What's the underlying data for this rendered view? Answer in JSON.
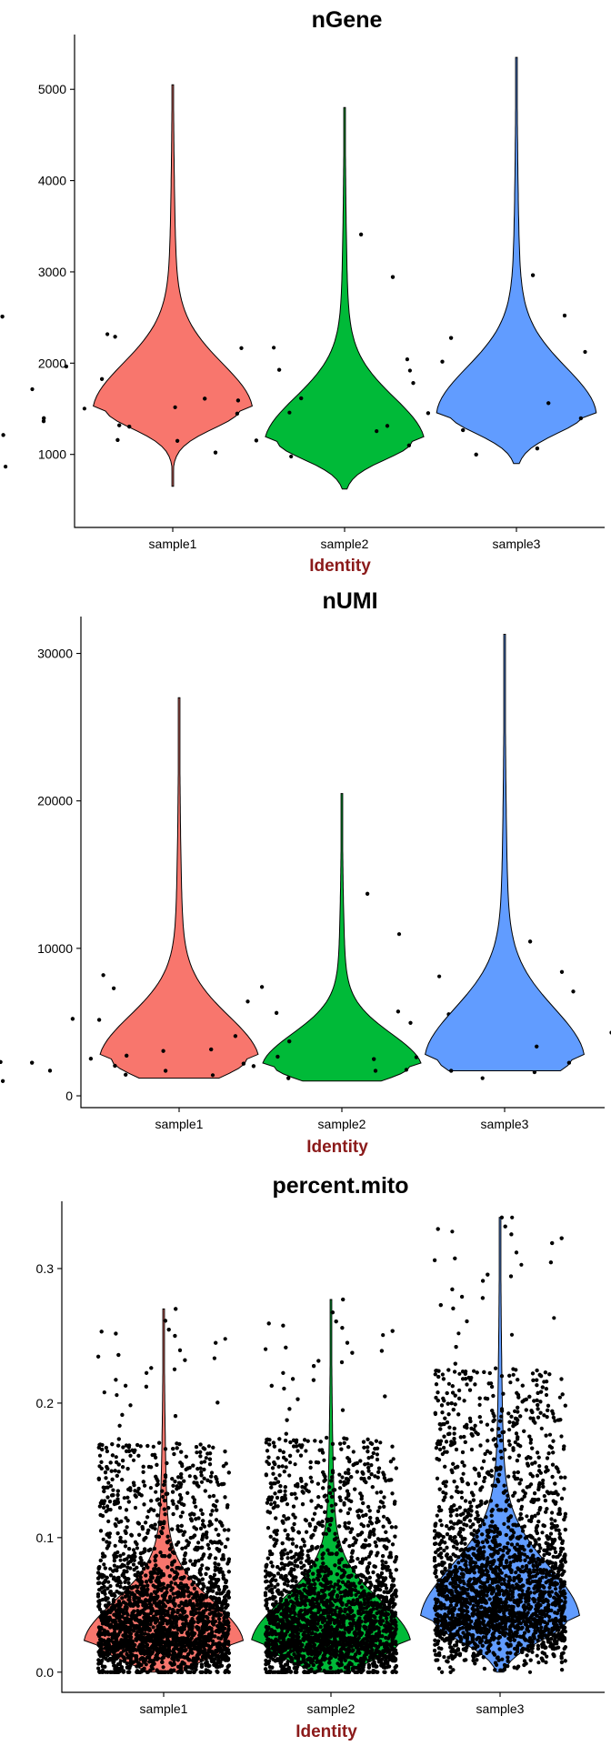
{
  "chart_data": [
    {
      "type": "violin",
      "title": "nGene",
      "xlabel": "Identity",
      "ylabel": "",
      "categories": [
        "sample1",
        "sample2",
        "sample3"
      ],
      "ylim": [
        200,
        5600
      ],
      "yticks": [
        1000,
        2000,
        3000,
        4000,
        5000
      ],
      "grid": false,
      "legend": "none",
      "series": [
        {
          "category": "sample1",
          "color": "#F8766D",
          "min": 650,
          "max": 5050,
          "density_peak": 1500,
          "scatter_spread": 900,
          "n_points_drawn": 4300
        },
        {
          "category": "sample2",
          "color": "#00BA38",
          "min": 620,
          "max": 4800,
          "density_peak": 1150,
          "scatter_spread": 900,
          "n_points_drawn": 4300
        },
        {
          "category": "sample3",
          "color": "#619CFF",
          "min": 900,
          "max": 5350,
          "density_peak": 1450,
          "scatter_spread": 900,
          "n_points_drawn": 4300
        }
      ]
    },
    {
      "type": "violin",
      "title": "nUMI",
      "xlabel": "Identity",
      "ylabel": "",
      "categories": [
        "sample1",
        "sample2",
        "sample3"
      ],
      "ylim": [
        -800,
        32500
      ],
      "yticks": [
        0,
        10000,
        20000,
        30000
      ],
      "grid": false,
      "legend": "none",
      "series": [
        {
          "category": "sample1",
          "color": "#F8766D",
          "min": 1200,
          "max": 27000,
          "density_peak": 2500,
          "scatter_spread": 900,
          "n_points_drawn": 4300
        },
        {
          "category": "sample2",
          "color": "#00BA38",
          "min": 1000,
          "max": 20500,
          "density_peak": 2000,
          "scatter_spread": 900,
          "n_points_drawn": 4300
        },
        {
          "category": "sample3",
          "color": "#619CFF",
          "min": 1700,
          "max": 31300,
          "density_peak": 2600,
          "scatter_spread": 900,
          "n_points_drawn": 4300
        }
      ]
    },
    {
      "type": "violin",
      "title": "percent.mito",
      "xlabel": "Identity",
      "ylabel": "",
      "categories": [
        "sample1",
        "sample2",
        "sample3"
      ],
      "ylim": [
        -0.015,
        0.35
      ],
      "yticks": [
        0.0,
        0.1,
        0.2,
        0.3
      ],
      "ytick_labels": [
        "0.0",
        "0.1",
        "0.2",
        "0.3"
      ],
      "grid": false,
      "legend": "none",
      "series": [
        {
          "category": "sample1",
          "color": "#F8766D",
          "min": 0.0,
          "max": 0.27,
          "density_peak": 0.022,
          "scatter_spread": 0.9,
          "n_points_drawn": 4300
        },
        {
          "category": "sample2",
          "color": "#00BA38",
          "min": 0.0,
          "max": 0.277,
          "density_peak": 0.022,
          "scatter_spread": 0.9,
          "n_points_drawn": 4300
        },
        {
          "category": "sample3",
          "color": "#619CFF",
          "min": 0.0,
          "max": 0.338,
          "density_peak": 0.04,
          "scatter_spread": 0.9,
          "n_points_drawn": 4300
        }
      ]
    }
  ],
  "colors": {
    "axis_title": "#8B1A1A",
    "points": "#000000",
    "axis": "#000000"
  }
}
